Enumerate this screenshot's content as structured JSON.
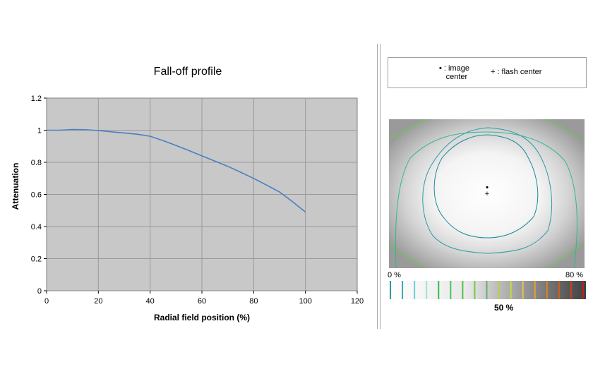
{
  "chart_data": {
    "type": "line",
    "title": "Fall-off profile",
    "xlabel": "Radial field position (%)",
    "ylabel": "Attenuation",
    "xlim": [
      0,
      120
    ],
    "ylim": [
      0,
      1.2
    ],
    "xticks": [
      "0",
      "20",
      "40",
      "60",
      "80",
      "100",
      "120"
    ],
    "yticks": [
      "0",
      "0.2",
      "0.4",
      "0.6",
      "0.8",
      "1",
      "1.2"
    ],
    "grid": true,
    "plot_background": "#c8c8c8",
    "series": [
      {
        "color": "#4a7fc4",
        "x": [
          0,
          5,
          10,
          15,
          20,
          25,
          30,
          35,
          40,
          45,
          50,
          55,
          60,
          65,
          70,
          75,
          80,
          85,
          90,
          95,
          100
        ],
        "y": [
          1.0,
          1.0,
          1.004,
          1.003,
          0.998,
          0.99,
          0.983,
          0.975,
          0.962,
          0.935,
          0.905,
          0.873,
          0.84,
          0.808,
          0.775,
          0.738,
          0.7,
          0.658,
          0.615,
          0.555,
          0.49
        ]
      }
    ]
  },
  "legend": {
    "image_center_symbol": "•",
    "image_center_label_line1": ": image",
    "image_center_label_line2": "center",
    "flash_center_symbol": "+",
    "flash_center_label": ": flash center"
  },
  "scale": {
    "min_label": "0 %",
    "max_label": "80 %",
    "mid_label": "50 %",
    "tick_colors": [
      "#2a9aaa",
      "#3aaab8",
      "#6ad0d0",
      "#a0e0d8",
      "#30c050",
      "#40c860",
      "#50c050",
      "#70c840",
      "#60b070",
      "#b8d040",
      "#c0e040",
      "#e8c050",
      "#e8a030",
      "#e08020",
      "#d06020",
      "#c84020",
      "#c02010"
    ]
  },
  "map": {
    "contour_colors": [
      "#1a8a9a",
      "#2a9aaa",
      "#30b890",
      "#40c860",
      "#60d040"
    ],
    "image_center_marker": "•",
    "flash_center_marker": "+"
  }
}
